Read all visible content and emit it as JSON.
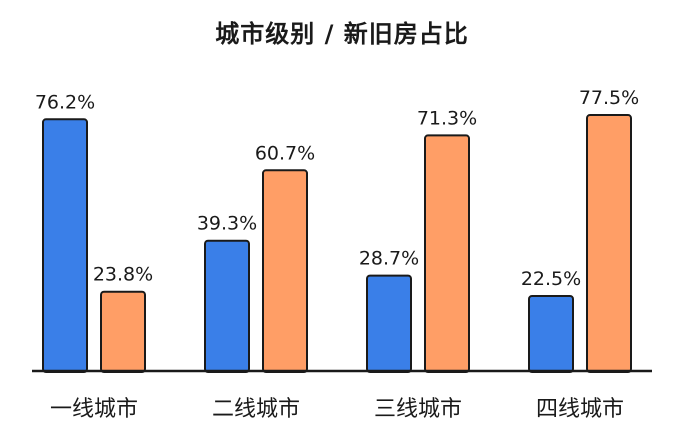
{
  "chart_data": {
    "type": "bar",
    "title": "城市级别 / 新旧房占比",
    "categories": [
      "一线城市",
      "二线城市",
      "三线城市",
      "四线城市"
    ],
    "series": [
      {
        "color": "#3a7fe8",
        "values": [
          76.2,
          39.3,
          28.7,
          22.5
        ],
        "labels": [
          "76.2%",
          "39.3%",
          "28.7%",
          "22.5%"
        ]
      },
      {
        "color": "#ff9e66",
        "values": [
          23.8,
          60.7,
          71.3,
          77.5
        ],
        "labels": [
          "23.8%",
          "60.7%",
          "71.3%",
          "77.5%"
        ]
      }
    ],
    "ylim": [
      0,
      100
    ],
    "grid": false,
    "legend": "none",
    "axis_color": "#1a1a1a"
  }
}
